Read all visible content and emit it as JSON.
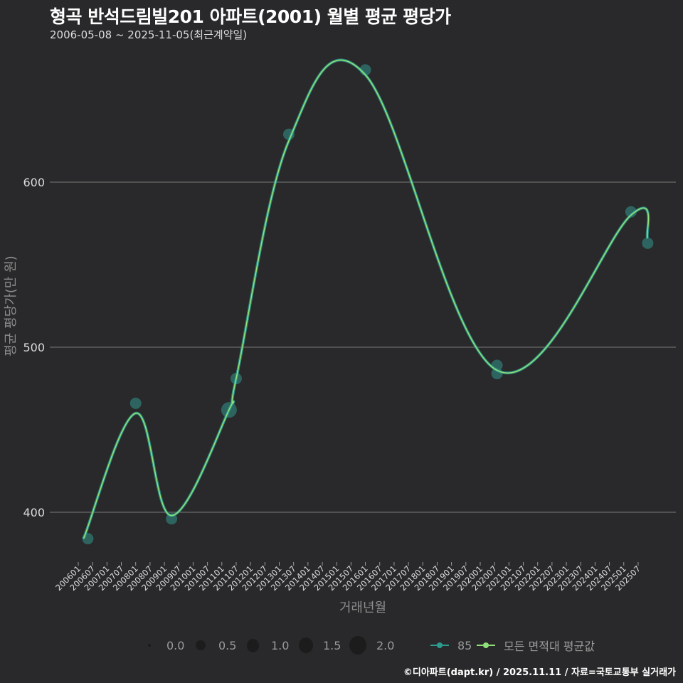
{
  "header": {
    "title": "형곡 반석드림빌201 아파트(2001) 월별 평균 평당가",
    "subtitle": "2006-05-08 ~ 2025-11-05(최근계약일)"
  },
  "axes": {
    "ylabel": "평균 평당가(만 원)",
    "xlabel": "거래년월"
  },
  "legend": {
    "size_items": [
      {
        "label": "0.0",
        "size": 4
      },
      {
        "label": "0.5",
        "size": 14
      },
      {
        "label": "1.0",
        "size": 18
      },
      {
        "label": "1.5",
        "size": 20
      },
      {
        "label": "2.0",
        "size": 24
      }
    ],
    "series_items": [
      {
        "label": "85",
        "color": "#2a9d8f"
      },
      {
        "label": "모든 면적대 평균값",
        "color": "#90e07a"
      }
    ]
  },
  "caption": "©디아파트(dapt.kr) / 2025.11.11 / 자료=국토교통부 실거래가",
  "colors": {
    "background": "#29282a",
    "grid": "#6a6a6a",
    "series_85": "#2a9d8f",
    "avg_line": "#90e07a",
    "point_fill": "#2f6e68"
  },
  "chart_data": {
    "type": "line",
    "title": "형곡 반석드림빌201 아파트(2001) 월별 평균 평당가",
    "subtitle": "2006-05-08 ~ 2025-11-05(최근계약일)",
    "xlabel": "거래년월",
    "ylabel": "평균 평당가(만 원)",
    "ylim": [
      370,
      675
    ],
    "yticks": [
      400,
      500,
      600
    ],
    "grid": true,
    "legend_position": "bottom",
    "x_tick_labels": [
      "200601",
      "200607",
      "200701",
      "200707",
      "200801",
      "200807",
      "200901",
      "200907",
      "201001",
      "201007",
      "201101",
      "201107",
      "201201",
      "201207",
      "201301",
      "201307",
      "201401",
      "201407",
      "201501",
      "201507",
      "201601",
      "201607",
      "201701",
      "201707",
      "201801",
      "201807",
      "201901",
      "201907",
      "202001",
      "202007",
      "202101",
      "202107",
      "202201",
      "202207",
      "202301",
      "202307",
      "202401",
      "202407",
      "202501",
      "202507"
    ],
    "series": [
      {
        "name": "85",
        "type": "scatter",
        "points": [
          {
            "x": "200605",
            "y": 384,
            "size": 1.0
          },
          {
            "x": "200801",
            "y": 466,
            "size": 1.0
          },
          {
            "x": "200904",
            "y": 396,
            "size": 1.0
          },
          {
            "x": "201104",
            "y": 462,
            "size": 2.0
          },
          {
            "x": "201107",
            "y": 481,
            "size": 1.0
          },
          {
            "x": "201305",
            "y": 629,
            "size": 1.0
          },
          {
            "x": "201601",
            "y": 668,
            "size": 1.0
          },
          {
            "x": "202008",
            "y": 489,
            "size": 1.0
          },
          {
            "x": "202008",
            "y": 484,
            "size": 1.0
          },
          {
            "x": "202504",
            "y": 582,
            "size": 1.0
          },
          {
            "x": "202511",
            "y": 563,
            "size": 1.0
          }
        ]
      },
      {
        "name": "모든 면적대 평균값",
        "type": "line",
        "points": [
          {
            "x": "200605",
            "y": 384
          },
          {
            "x": "200801",
            "y": 460
          },
          {
            "x": "200904",
            "y": 398
          },
          {
            "x": "201104",
            "y": 462
          },
          {
            "x": "201107",
            "y": 481
          },
          {
            "x": "201305",
            "y": 625
          },
          {
            "x": "201601",
            "y": 665
          },
          {
            "x": "202008",
            "y": 486
          },
          {
            "x": "202504",
            "y": 580
          },
          {
            "x": "202511",
            "y": 566
          }
        ]
      }
    ]
  }
}
